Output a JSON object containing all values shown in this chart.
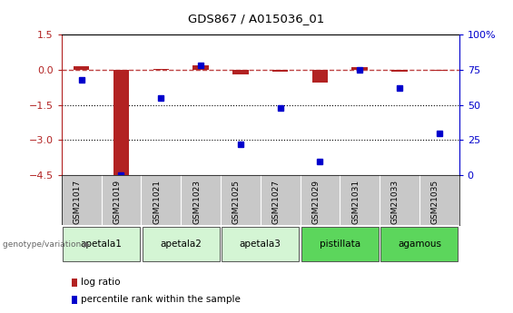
{
  "title": "GDS867 / A015036_01",
  "samples": [
    "GSM21017",
    "GSM21019",
    "GSM21021",
    "GSM21023",
    "GSM21025",
    "GSM21027",
    "GSM21029",
    "GSM21031",
    "GSM21033",
    "GSM21035"
  ],
  "log_ratio": [
    0.15,
    -4.5,
    0.02,
    0.2,
    -0.2,
    -0.08,
    -0.55,
    0.12,
    -0.08,
    -0.04
  ],
  "percentile_rank": [
    68,
    0,
    55,
    78,
    22,
    48,
    10,
    75,
    62,
    30
  ],
  "group_defs": [
    [
      "apetala1",
      0,
      2,
      "#d4f5d4"
    ],
    [
      "apetala2",
      2,
      4,
      "#d4f5d4"
    ],
    [
      "apetala3",
      4,
      6,
      "#d4f5d4"
    ],
    [
      "pistillata",
      6,
      8,
      "#5cd65c"
    ],
    [
      "agamous",
      8,
      10,
      "#5cd65c"
    ]
  ],
  "ylim_left": [
    -4.5,
    1.5
  ],
  "ylim_right": [
    0,
    100
  ],
  "yticks_left": [
    1.5,
    0,
    -1.5,
    -3,
    -4.5
  ],
  "yticks_right": [
    0,
    25,
    50,
    75,
    100
  ],
  "hlines": [
    -1.5,
    -3.0
  ],
  "bar_color": "#b22222",
  "dot_color": "#0000cc",
  "background_color": "#ffffff",
  "legend_items": [
    "log ratio",
    "percentile rank within the sample"
  ],
  "genotype_label": "genotype/variation"
}
